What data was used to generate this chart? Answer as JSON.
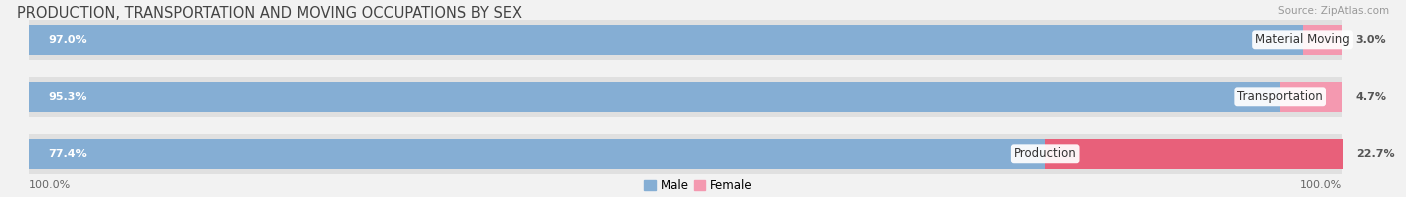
{
  "title": "PRODUCTION, TRANSPORTATION AND MOVING OCCUPATIONS BY SEX",
  "source": "Source: ZipAtlas.com",
  "categories": [
    "Material Moving",
    "Transportation",
    "Production"
  ],
  "male_values": [
    97.0,
    95.3,
    77.4
  ],
  "female_values": [
    3.0,
    4.7,
    22.7
  ],
  "male_color": "#85aed4",
  "female_color": "#f499b0",
  "female_color_production": "#e8607a",
  "bg_color": "#f2f2f2",
  "bar_bg_color": "#e0e0e0",
  "title_fontsize": 10.5,
  "label_fontsize": 8.5,
  "value_fontsize": 8.0,
  "tick_fontsize": 8.0,
  "source_fontsize": 7.5,
  "bar_height": 0.52,
  "bar_gap": 0.12
}
